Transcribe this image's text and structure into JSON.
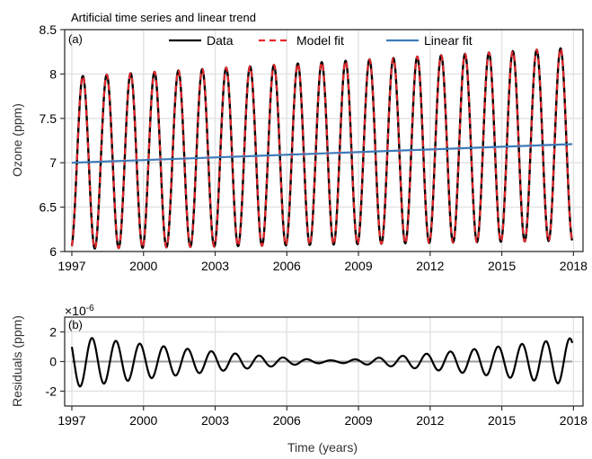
{
  "chart_data": [
    {
      "type": "line",
      "panel_label": "(a)",
      "title": "Artificial time series and linear trend",
      "xlabel": "",
      "ylabel": "Ozone (ppm)",
      "xlim": [
        1996.7,
        2018.4
      ],
      "ylim": [
        6,
        8.5
      ],
      "xticks": [
        "1997",
        "2000",
        "2003",
        "2006",
        "2009",
        "2012",
        "2015",
        "2018"
      ],
      "yticks": [
        "6",
        "6.5",
        "7",
        "7.5",
        "8",
        "8.5"
      ],
      "legend_position": "top-center",
      "grid": true,
      "series": [
        {
          "name": "Data",
          "color": "#000000",
          "style": "solid",
          "description": "annual sine oscillation about linear trend, amplitude ~0.97 ppm, period 1 year",
          "x_start": 1997.0,
          "x_end": 2017.95,
          "trend_start": 7.0,
          "trend_end": 7.21,
          "amplitude": 0.97
        },
        {
          "name": "Model fit",
          "color": "#e8272b",
          "style": "dashed"
        },
        {
          "name": "Linear fit",
          "color": "#3e7ab8",
          "style": "solid",
          "x": [
            1997.0,
            2017.95
          ],
          "y": [
            7.0,
            7.21
          ]
        }
      ]
    },
    {
      "type": "line",
      "panel_label": "(b)",
      "title": "",
      "xlabel": "Time (years)",
      "ylabel": "Residuals (ppm)",
      "y_scale_note": "×10-6",
      "xlim": [
        1996.7,
        2018.4
      ],
      "ylim": [
        -3,
        3
      ],
      "xticks": [
        "1997",
        "2000",
        "2003",
        "2006",
        "2009",
        "2012",
        "2015",
        "2018"
      ],
      "yticks": [
        "-2",
        "0",
        "2"
      ],
      "grid": true,
      "series": [
        {
          "name": "",
          "color": "#000000",
          "description": "annual oscillation with amplitude ~1.7e-6 at ends shrinking to ~0.1e-6 near 2008",
          "amplitude_edge": 1.75,
          "amplitude_center": 0.08,
          "center_year": 2007.9
        },
        {
          "name": "",
          "color": "#999999",
          "description": "zero line",
          "y": [
            0,
            0
          ]
        }
      ]
    }
  ]
}
